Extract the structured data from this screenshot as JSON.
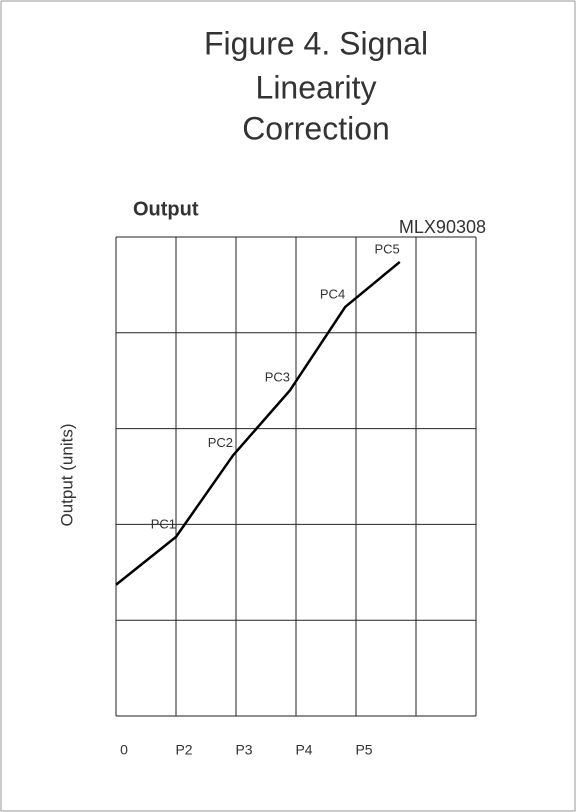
{
  "chart_data": {
    "type": "line",
    "title": [
      "Figure 4. Signal",
      "Linearity",
      "Correction"
    ],
    "header": "Output",
    "y_label": "Output (units)",
    "xlim": [
      0,
      6
    ],
    "ylim": [
      0,
      5
    ],
    "xticks": [
      0,
      {
        "value": 1,
        "label": "P2"
      },
      {
        "value": 2,
        "label": "P3"
      },
      {
        "value": 3,
        "label": "P4"
      },
      {
        "value": 4,
        "label": "P5"
      }
    ],
    "xgrid": [
      0,
      1,
      2,
      3,
      4,
      5,
      6
    ],
    "ygrid": [
      0,
      1,
      2,
      3,
      4,
      5
    ],
    "grid": true,
    "series": [
      {
        "name": "MLX90308",
        "color": "#000000",
        "x": [
          0,
          1.0,
          1.95,
          2.9,
          3.82,
          4.73
        ],
        "values": [
          1.37,
          1.87,
          2.72,
          3.4,
          4.27,
          4.74
        ],
        "point_labels": [
          null,
          "PC1",
          "PC2",
          "PC3",
          "PC4",
          "PC5"
        ]
      }
    ]
  }
}
